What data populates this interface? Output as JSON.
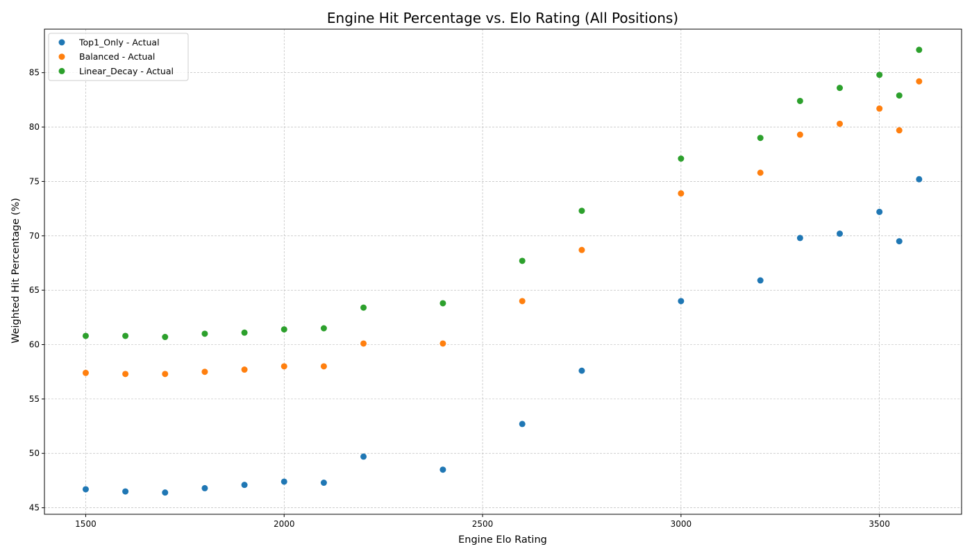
{
  "chart_data": {
    "type": "scatter",
    "title": "Engine Hit Percentage vs. Elo Rating (All Positions)",
    "xlabel": "Engine Elo Rating",
    "ylabel": "Weighted Hit Percentage (%)",
    "xlim": [
      1396,
      3707
    ],
    "ylim": [
      44.4,
      89.0
    ],
    "xticks": [
      1500,
      2000,
      2500,
      3000,
      3500
    ],
    "yticks": [
      45,
      50,
      55,
      60,
      65,
      70,
      75,
      80,
      85
    ],
    "grid": true,
    "legend_position": "top-left",
    "x": [
      1500,
      1600,
      1700,
      1800,
      1900,
      2000,
      2100,
      2200,
      2400,
      2600,
      2750,
      3000,
      3200,
      3300,
      3400,
      3500,
      3550,
      3600
    ],
    "series": [
      {
        "name": "Top1_Only - Actual",
        "color": "#1f77b4",
        "values": [
          46.7,
          46.5,
          46.4,
          46.8,
          47.1,
          47.4,
          47.3,
          49.7,
          48.5,
          52.7,
          57.6,
          64.0,
          65.9,
          69.8,
          70.2,
          72.2,
          69.5,
          75.2
        ]
      },
      {
        "name": "Balanced - Actual",
        "color": "#ff7f0e",
        "values": [
          57.4,
          57.3,
          57.3,
          57.5,
          57.7,
          58.0,
          58.0,
          60.1,
          60.1,
          64.0,
          68.7,
          73.9,
          75.8,
          79.3,
          80.3,
          81.7,
          79.7,
          84.2
        ]
      },
      {
        "name": "Linear_Decay - Actual",
        "color": "#2ca02c",
        "values": [
          60.8,
          60.8,
          60.7,
          61.0,
          61.1,
          61.4,
          61.5,
          63.4,
          63.8,
          67.7,
          72.3,
          77.1,
          79.0,
          82.4,
          83.6,
          84.8,
          82.9,
          87.1
        ]
      }
    ]
  }
}
